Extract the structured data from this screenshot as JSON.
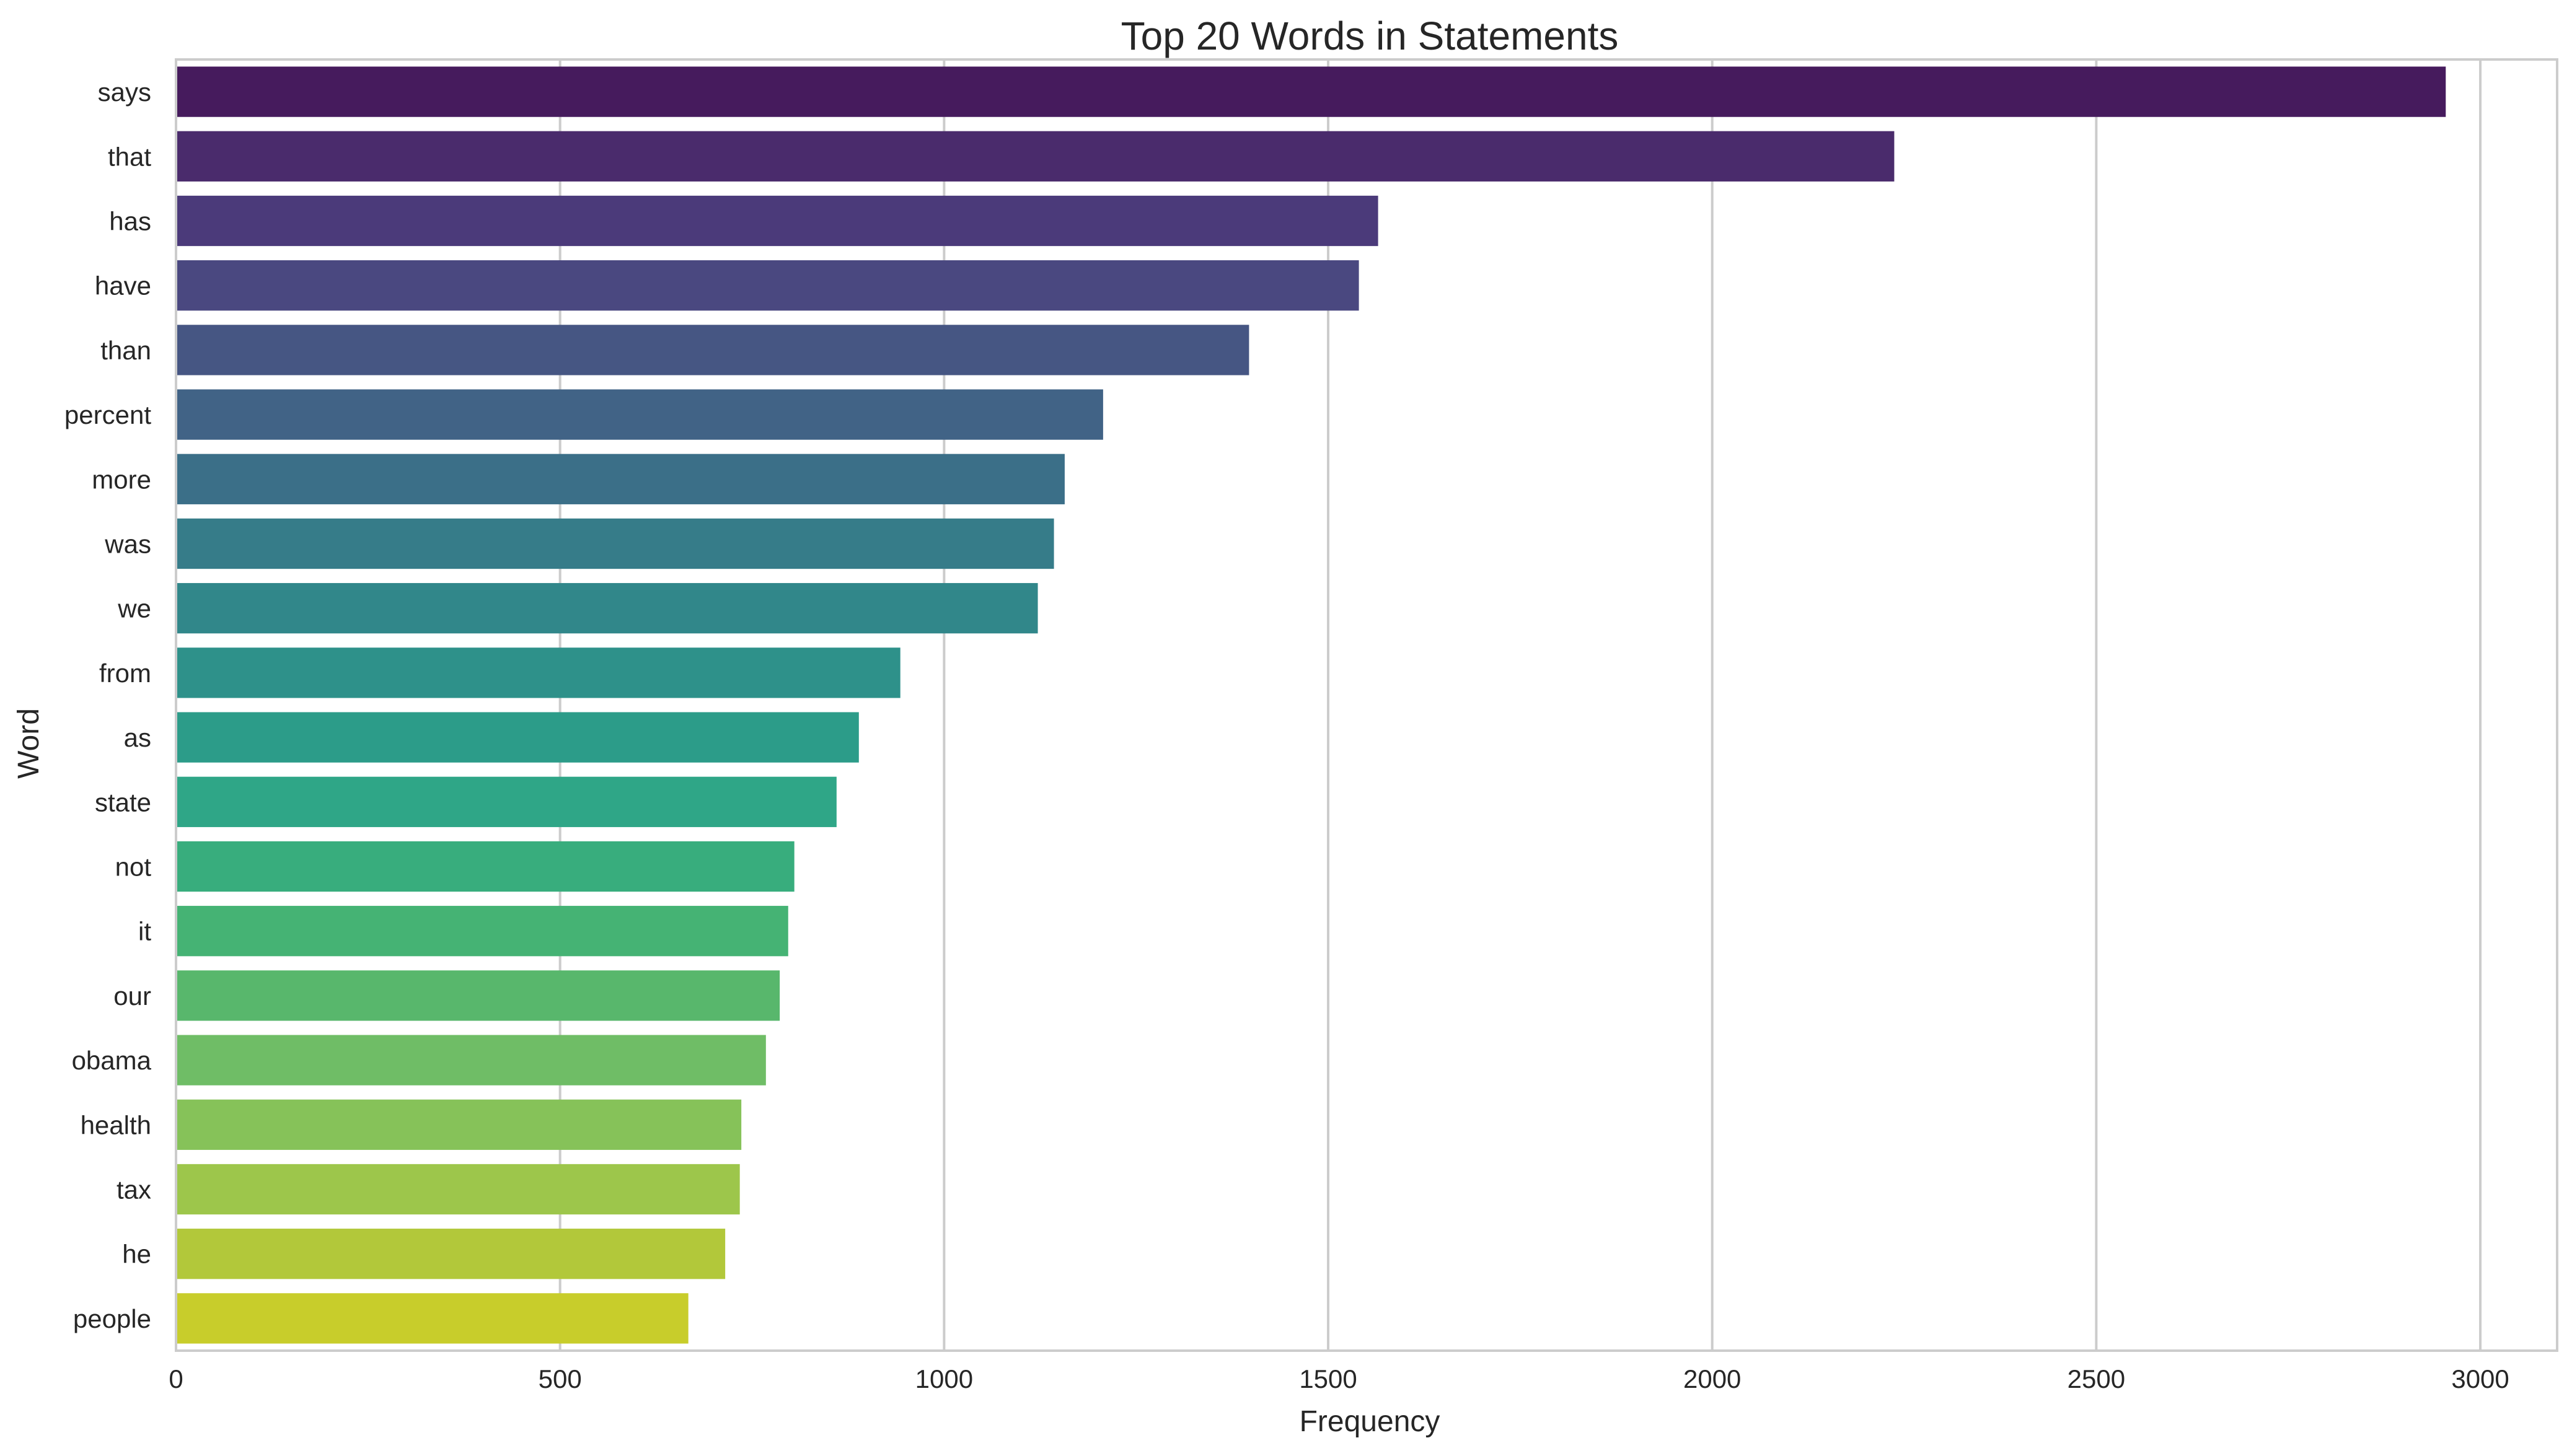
{
  "chart_data": {
    "type": "bar",
    "orientation": "horizontal",
    "title": "Top 20 Words in Statements",
    "xlabel": "Frequency",
    "ylabel": "Word",
    "xlim": [
      0,
      3100
    ],
    "xticks": [
      0,
      500,
      1000,
      1500,
      2000,
      2500,
      3000
    ],
    "grid": true,
    "categories": [
      "says",
      "that",
      "has",
      "have",
      "than",
      "percent",
      "more",
      "was",
      "we",
      "from",
      "as",
      "state",
      "not",
      "it",
      "our",
      "obama",
      "health",
      "tax",
      "he",
      "people"
    ],
    "values": [
      2955,
      2237,
      1565,
      1540,
      1397,
      1207,
      1157,
      1143,
      1122,
      943,
      889,
      860,
      805,
      797,
      786,
      768,
      736,
      734,
      715,
      667
    ],
    "colors": [
      "#461b5d",
      "#4a2b6c",
      "#4b3a7a",
      "#4a4880",
      "#465683",
      "#416386",
      "#3b6f88",
      "#367c89",
      "#31878a",
      "#2e918a",
      "#2c9c89",
      "#2fa687",
      "#38ad7d",
      "#45b374",
      "#58b76c",
      "#6fbd66",
      "#86c259",
      "#9dc64b",
      "#b2c83a",
      "#c8cd2b"
    ]
  }
}
